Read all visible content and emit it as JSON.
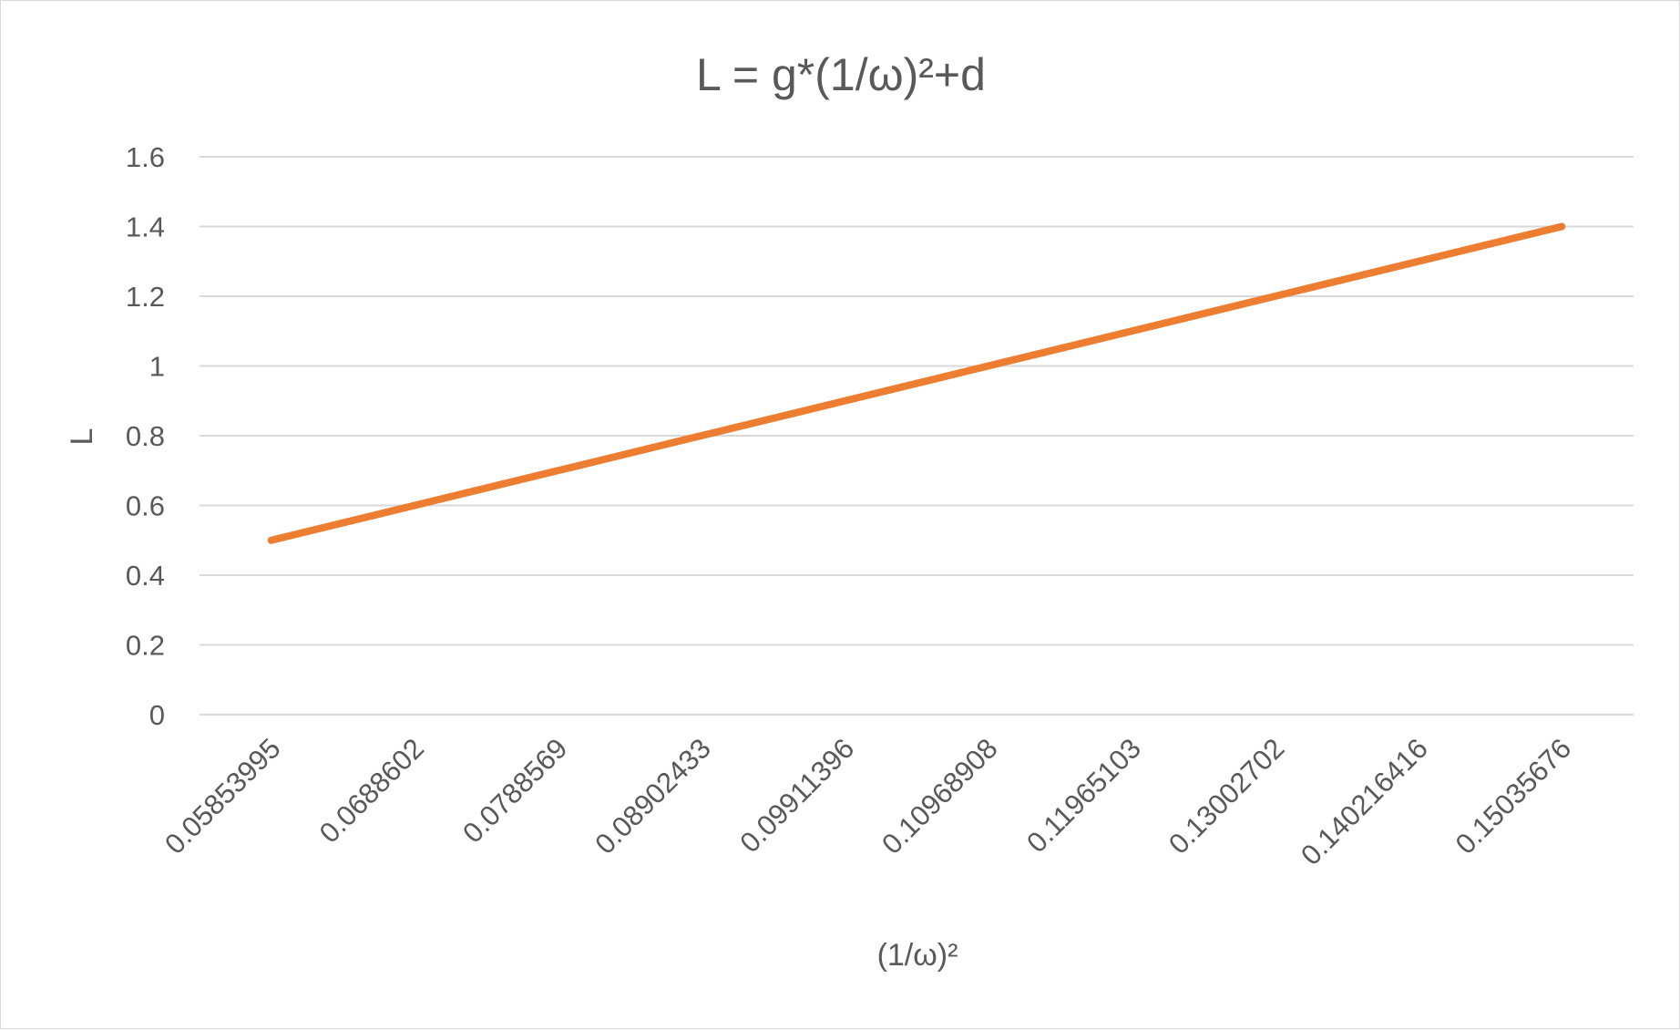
{
  "colors": {
    "series": "#ED7D31",
    "gridline": "#D9D9D9",
    "text": "#595959",
    "frame_border": "#D9D9D9"
  },
  "chart_data": {
    "type": "line",
    "title": "L = g*(1/ω)²+d",
    "xlabel": "(1/ω)²",
    "ylabel": "L",
    "categories": [
      "0.05853995",
      "0.0688602",
      "0.0788569",
      "0.08902433",
      "0.09911396",
      "0.10968908",
      "0.11965103",
      "0.13002702",
      "0.140216416",
      "0.15035676"
    ],
    "series": [
      {
        "values": [
          0.5,
          0.6,
          0.7,
          0.8,
          0.9,
          1.0,
          1.1,
          1.2,
          1.3,
          1.4
        ],
        "color": "#ED7D31"
      }
    ],
    "ylim": [
      0,
      1.6
    ],
    "yticks": [
      "0",
      "0.2",
      "0.4",
      "0.6",
      "0.8",
      "1",
      "1.2",
      "1.4",
      "1.6"
    ],
    "ytick_values": [
      0,
      0.2,
      0.4,
      0.6,
      0.8,
      1.0,
      1.2,
      1.4,
      1.6
    ],
    "grid": "horizontal",
    "legend": "none"
  }
}
